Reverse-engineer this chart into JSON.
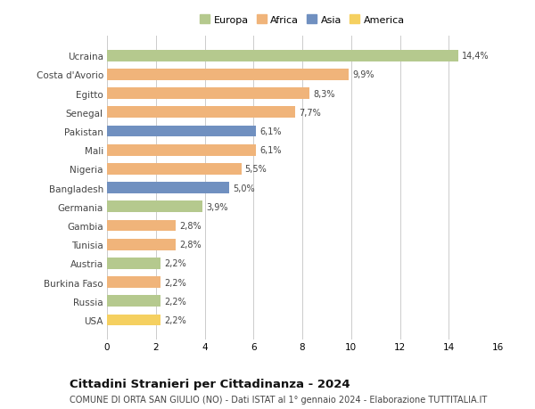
{
  "countries": [
    "Ucraina",
    "Costa d'Avorio",
    "Egitto",
    "Senegal",
    "Pakistan",
    "Mali",
    "Nigeria",
    "Bangladesh",
    "Germania",
    "Gambia",
    "Tunisia",
    "Austria",
    "Burkina Faso",
    "Russia",
    "USA"
  ],
  "values": [
    14.4,
    9.9,
    8.3,
    7.7,
    6.1,
    6.1,
    5.5,
    5.0,
    3.9,
    2.8,
    2.8,
    2.2,
    2.2,
    2.2,
    2.2
  ],
  "labels": [
    "14,4%",
    "9,9%",
    "8,3%",
    "7,7%",
    "6,1%",
    "6,1%",
    "5,5%",
    "5,0%",
    "3,9%",
    "2,8%",
    "2,8%",
    "2,2%",
    "2,2%",
    "2,2%",
    "2,2%"
  ],
  "continents": [
    "Europa",
    "Africa",
    "Africa",
    "Africa",
    "Asia",
    "Africa",
    "Africa",
    "Asia",
    "Europa",
    "Africa",
    "Africa",
    "Europa",
    "Africa",
    "Europa",
    "America"
  ],
  "colors": {
    "Europa": "#b5c98e",
    "Africa": "#f0b47a",
    "Asia": "#7090c0",
    "America": "#f5d060"
  },
  "legend_order": [
    "Europa",
    "Africa",
    "Asia",
    "America"
  ],
  "xlim": [
    0,
    16
  ],
  "xticks": [
    0,
    2,
    4,
    6,
    8,
    10,
    12,
    14,
    16
  ],
  "title": "Cittadini Stranieri per Cittadinanza - 2024",
  "subtitle": "COMUNE DI ORTA SAN GIULIO (NO) - Dati ISTAT al 1° gennaio 2024 - Elaborazione TUTTITALIA.IT",
  "title_fontsize": 9.5,
  "subtitle_fontsize": 7,
  "label_fontsize": 7,
  "tick_fontsize": 7.5,
  "legend_fontsize": 8,
  "bar_height": 0.6,
  "background_color": "#ffffff",
  "grid_color": "#cccccc",
  "text_color": "#444444"
}
